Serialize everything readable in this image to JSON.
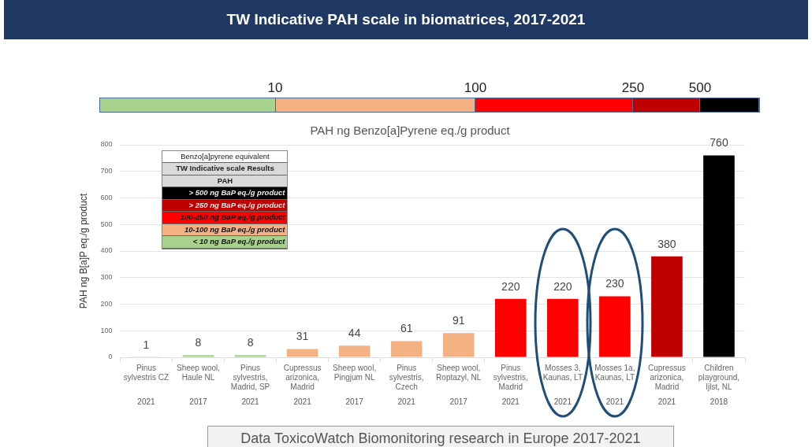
{
  "chart_data": {
    "type": "bar",
    "title": "TW Indicative PAH scale in biomatrices,  2017-2021",
    "subtitle": "PAH ng Benzo[a]Pyrene eq./g product",
    "ylabel": "PAH ng B[a]P eq./g product",
    "categories": [
      "Pinus sylvestris CZ",
      "Sheep wool, Haule NL",
      "Pinus sylvestris, Madrid, SP",
      "Cupressus arizonica, Madrid",
      "Sheep wool, Pingjum NL",
      "Pinus sylvestris, Czech",
      "Sheep wool, Roptazyl, NL",
      "Pinus sylvestris, Madrid",
      "Mosses 3, Kaunas, LT",
      "Mosses 1a, Kaunas, LT",
      "Cupressus arizonica, Madrid",
      "Children playground, Ijlst, NL"
    ],
    "values": [
      1,
      8,
      8,
      31,
      44,
      61,
      91,
      220,
      220,
      230,
      380,
      760
    ],
    "colors": [
      "#a9d18e",
      "#a9d18e",
      "#a9d18e",
      "#f4b183",
      "#f4b183",
      "#f4b183",
      "#f4b183",
      "#ff0000",
      "#ff0000",
      "#ff0000",
      "#c00000",
      "#000000"
    ],
    "ylim": [
      0,
      800
    ],
    "yticks": [
      0,
      100,
      200,
      300,
      400,
      500,
      600,
      700,
      800
    ],
    "grid": "y",
    "data_labels": true,
    "annotations": [
      "10",
      "100",
      "250",
      "500",
      "Benzo[a]pyrene equivalent",
      "TW Indicative scale Results",
      "PAH",
      "> 500 ng  BaP eq./g product",
      "> 250 ng  BaP eq./g product",
      "100-250 ng  BaP eq./g product",
      "10-100 ng  BaP eq./g product",
      "< 10 ng  BaP eq./g product",
      "Data  ToxicoWatch Biomonitoring research in Europe 2017-2021",
      "2021",
      "2017",
      "2021",
      "2021",
      "2017",
      "2021",
      "2017",
      "2021",
      "2021",
      "2021",
      "2021",
      "2018"
    ]
  }
}
